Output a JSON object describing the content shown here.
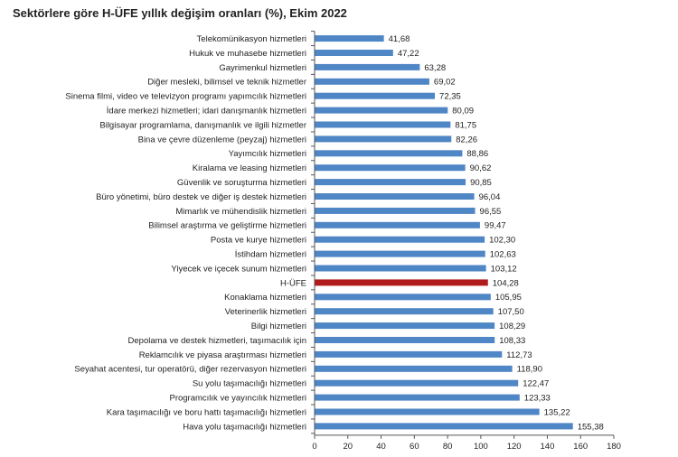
{
  "title": "Sektörlere göre H-ÜFE yıllık değişim oranları (%), Ekim 2022",
  "chart_data": {
    "type": "bar",
    "orientation": "horizontal",
    "title": "Sektörlere göre H-ÜFE yıllık değişim oranları (%), Ekim 2022",
    "xlabel": "",
    "ylabel": "",
    "xlim": [
      0,
      180
    ],
    "xticks": [
      0,
      20,
      40,
      60,
      80,
      100,
      120,
      140,
      160,
      180
    ],
    "grid": false,
    "legend": "none",
    "colors": {
      "default": "#4f86c6",
      "highlight": "#b01c1c"
    },
    "highlight_category": "H-ÜFE",
    "categories": [
      "Telekomünikasyon hizmetleri",
      "Hukuk ve muhasebe hizmetleri",
      "Gayrimenkul hizmetleri",
      "Diğer mesleki, bilimsel ve teknik hizmetler",
      "Sinema filmi, video ve televizyon programı yapımcılık hizmetleri",
      "İdare merkezi hizmetleri; idari danışmanlık hizmetleri",
      "Bilgisayar programlama, danışmanlık ve ilgili hizmetler",
      "Bina ve çevre düzenleme (peyzaj) hizmetleri",
      "Yayımcılık hizmetleri",
      "Kiralama ve leasing hizmetleri",
      "Güvenlik ve soruşturma hizmetleri",
      "Büro yönetimi, büro destek ve diğer iş destek hizmetleri",
      "Mimarlık ve mühendislik hizmetleri",
      "Bilimsel araştırma ve geliştirme hizmetleri",
      "Posta ve kurye hizmetleri",
      "İstihdam hizmetleri",
      "Yiyecek ve içecek sunum hizmetleri",
      "H-ÜFE",
      "Konaklama hizmetleri",
      "Veterinerlik hizmetleri",
      "Bilgi hizmetleri",
      "Depolama ve destek hizmetleri, taşımacılık için",
      "Reklamcılık ve piyasa araştırması hizmetleri",
      "Seyahat acentesi, tur operatörü, diğer rezervasyon hizmetleri",
      "Su yolu taşımacılığı hizmetleri",
      "Programcılık ve yayıncılık hizmetleri",
      "Kara taşımacılığı ve boru hattı taşımacılığı hizmetleri",
      "Hava yolu taşımacılığı hizmetleri"
    ],
    "values": [
      41.68,
      47.22,
      63.28,
      69.02,
      72.35,
      80.09,
      81.75,
      82.26,
      88.86,
      90.62,
      90.85,
      96.04,
      96.55,
      99.47,
      102.3,
      102.63,
      103.12,
      104.28,
      105.95,
      107.5,
      108.29,
      108.33,
      112.73,
      118.9,
      122.47,
      123.33,
      135.22,
      155.38
    ],
    "value_labels": [
      "41,68",
      "47,22",
      "63,28",
      "69,02",
      "72,35",
      "80,09",
      "81,75",
      "82,26",
      "88,86",
      "90,62",
      "90,85",
      "96,04",
      "96,55",
      "99,47",
      "102,30",
      "102,63",
      "103,12",
      "104,28",
      "105,95",
      "107,50",
      "108,29",
      "108,33",
      "112,73",
      "118,90",
      "122,47",
      "123,33",
      "135,22",
      "155,38"
    ]
  }
}
